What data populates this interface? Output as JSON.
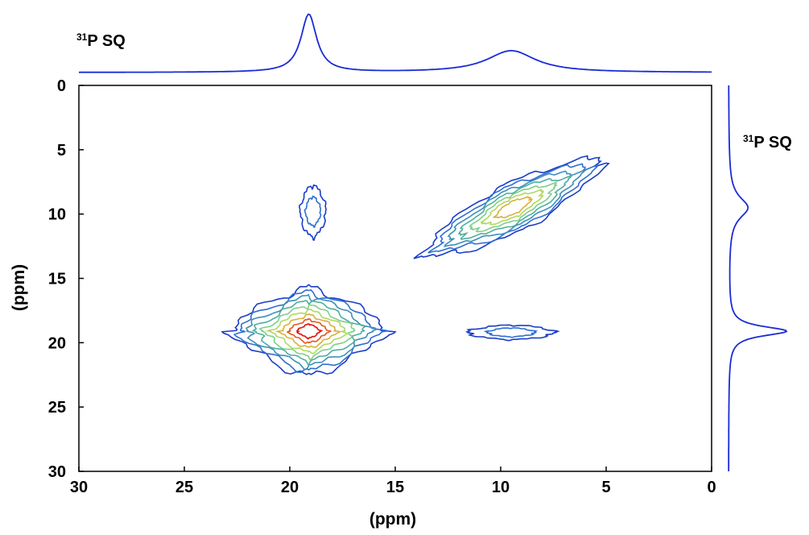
{
  "chart_data": {
    "type": "contour",
    "xlabel": "(ppm)",
    "ylabel": "(ppm)",
    "xlim": [
      30,
      0
    ],
    "ylim": [
      0,
      30
    ],
    "x_ticks": [
      "30",
      "25",
      "20",
      "15",
      "10",
      "5",
      "0"
    ],
    "y_ticks": [
      "0",
      "5",
      "10",
      "15",
      "20",
      "25",
      "30"
    ],
    "top_projection_label": {
      "sup": "31",
      "text": "P SQ"
    },
    "right_projection_label": {
      "sup": "31",
      "text": "P SQ"
    },
    "projection_peaks_ppm": [
      19.1,
      9.5
    ],
    "contour_colors": [
      "#1a3dc8",
      "#2f6fd0",
      "#3f8fb8",
      "#4fae9f",
      "#7fcf8a",
      "#b0d860",
      "#d8b040",
      "#e05a20",
      "#e01010"
    ],
    "peaks": [
      {
        "label": "diagonal",
        "x": 19.1,
        "y": 19.1,
        "shape": "diamond",
        "levels": 9
      },
      {
        "label": "diagonal",
        "x": 9.4,
        "y": 9.5,
        "shape": "tilted-ellipse",
        "levels": 7
      },
      {
        "label": "cross",
        "x": 18.9,
        "y": 9.8,
        "shape": "small",
        "levels": 2
      },
      {
        "label": "cross",
        "x": 9.5,
        "y": 19.2,
        "shape": "small",
        "levels": 2
      }
    ]
  }
}
